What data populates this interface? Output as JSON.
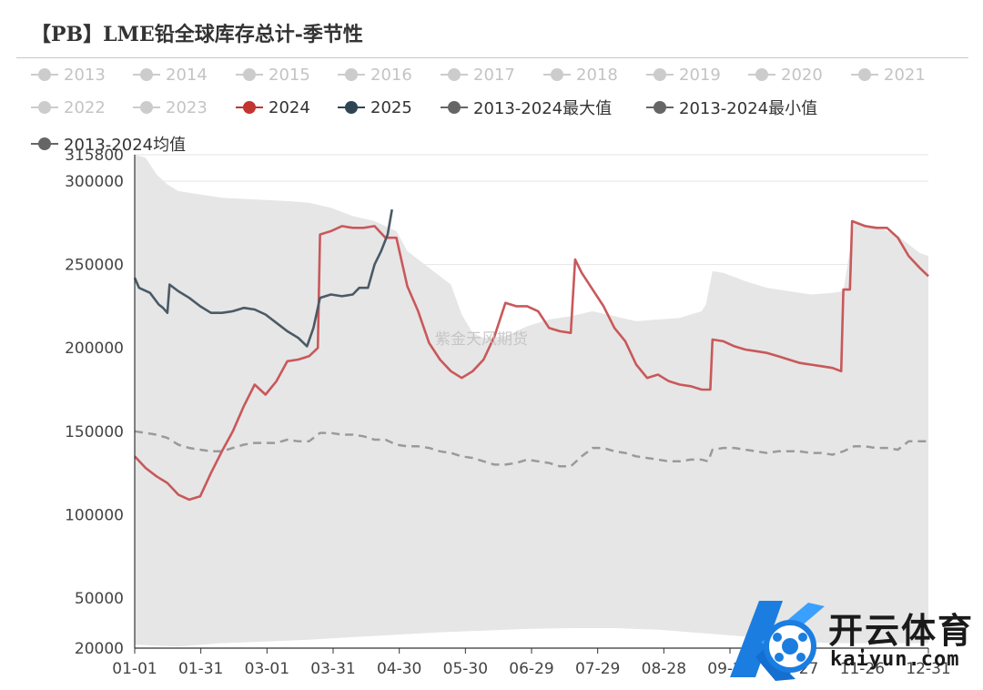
{
  "chart_data": {
    "type": "line",
    "title": "【PB】LME铅全球库存总计-季节性",
    "x_ticks": [
      "01-01",
      "01-31",
      "03-01",
      "03-31",
      "04-30",
      "05-30",
      "06-29",
      "07-29",
      "08-28",
      "09-27",
      "10-27",
      "11-26",
      "12-31"
    ],
    "y_ticks": [
      20000,
      50000,
      100000,
      150000,
      200000,
      250000,
      300000,
      315800
    ],
    "ylim": [
      20000,
      315800
    ],
    "xlim_day_of_year": [
      1,
      365
    ],
    "grid": "horizontal",
    "legend_position": "top",
    "legend": [
      {
        "name": "2013",
        "color": "#cccccc",
        "inactive": true
      },
      {
        "name": "2014",
        "color": "#cccccc",
        "inactive": true
      },
      {
        "name": "2015",
        "color": "#cccccc",
        "inactive": true
      },
      {
        "name": "2016",
        "color": "#cccccc",
        "inactive": true
      },
      {
        "name": "2017",
        "color": "#cccccc",
        "inactive": true
      },
      {
        "name": "2018",
        "color": "#cccccc",
        "inactive": true
      },
      {
        "name": "2019",
        "color": "#cccccc",
        "inactive": true
      },
      {
        "name": "2020",
        "color": "#cccccc",
        "inactive": true
      },
      {
        "name": "2021",
        "color": "#cccccc",
        "inactive": true
      },
      {
        "name": "2022",
        "color": "#cccccc",
        "inactive": true
      },
      {
        "name": "2023",
        "color": "#cccccc",
        "inactive": true
      },
      {
        "name": "2024",
        "color": "#c23531",
        "inactive": false
      },
      {
        "name": "2025",
        "color": "#2f4554",
        "inactive": false
      },
      {
        "name": "2013-2024最大值",
        "color": "#666666",
        "inactive": false
      },
      {
        "name": "2013-2024最小值",
        "color": "#666666",
        "inactive": false
      },
      {
        "name": "2013-2024均值",
        "color": "#666666",
        "inactive": false
      }
    ],
    "series": [
      {
        "name": "2024",
        "color": "#c9585a",
        "points": [
          [
            1,
            135000
          ],
          [
            6,
            128000
          ],
          [
            11,
            123000
          ],
          [
            16,
            119000
          ],
          [
            21,
            112000
          ],
          [
            26,
            109000
          ],
          [
            31,
            111000
          ],
          [
            36,
            125000
          ],
          [
            41,
            138000
          ],
          [
            46,
            150000
          ],
          [
            51,
            165000
          ],
          [
            56,
            178000
          ],
          [
            61,
            172000
          ],
          [
            66,
            180000
          ],
          [
            71,
            192000
          ],
          [
            76,
            193000
          ],
          [
            81,
            195000
          ],
          [
            85,
            200000
          ],
          [
            86,
            268000
          ],
          [
            91,
            270000
          ],
          [
            96,
            273000
          ],
          [
            101,
            272000
          ],
          [
            106,
            272000
          ],
          [
            111,
            273000
          ],
          [
            116,
            266000
          ],
          [
            121,
            266000
          ],
          [
            126,
            237000
          ],
          [
            131,
            222000
          ],
          [
            136,
            203000
          ],
          [
            141,
            193000
          ],
          [
            146,
            186000
          ],
          [
            151,
            182000
          ],
          [
            156,
            186000
          ],
          [
            161,
            193000
          ],
          [
            166,
            207000
          ],
          [
            171,
            227000
          ],
          [
            176,
            225000
          ],
          [
            181,
            225000
          ],
          [
            186,
            222000
          ],
          [
            191,
            212000
          ],
          [
            196,
            210000
          ],
          [
            201,
            209000
          ],
          [
            203,
            253000
          ],
          [
            206,
            245000
          ],
          [
            211,
            235000
          ],
          [
            216,
            225000
          ],
          [
            221,
            212000
          ],
          [
            226,
            204000
          ],
          [
            231,
            190000
          ],
          [
            236,
            182000
          ],
          [
            241,
            184000
          ],
          [
            246,
            180000
          ],
          [
            251,
            178000
          ],
          [
            256,
            177000
          ],
          [
            261,
            175000
          ],
          [
            265,
            175000
          ],
          [
            266,
            205000
          ],
          [
            271,
            204000
          ],
          [
            276,
            201000
          ],
          [
            281,
            199000
          ],
          [
            286,
            198000
          ],
          [
            291,
            197000
          ],
          [
            296,
            195000
          ],
          [
            301,
            193000
          ],
          [
            306,
            191000
          ],
          [
            311,
            190000
          ],
          [
            316,
            189000
          ],
          [
            321,
            188000
          ],
          [
            325,
            186000
          ],
          [
            326,
            235000
          ],
          [
            329,
            235000
          ],
          [
            330,
            276000
          ],
          [
            336,
            273000
          ],
          [
            341,
            272000
          ],
          [
            346,
            272000
          ],
          [
            351,
            266000
          ],
          [
            356,
            255000
          ],
          [
            361,
            248000
          ],
          [
            365,
            243000
          ]
        ]
      },
      {
        "name": "2025",
        "color": "#4a5a66",
        "points": [
          [
            1,
            242000
          ],
          [
            3,
            236000
          ],
          [
            8,
            233000
          ],
          [
            12,
            226000
          ],
          [
            14,
            224000
          ],
          [
            16,
            221000
          ],
          [
            17,
            238000
          ],
          [
            21,
            234000
          ],
          [
            26,
            230000
          ],
          [
            31,
            225000
          ],
          [
            36,
            221000
          ],
          [
            41,
            221000
          ],
          [
            46,
            222000
          ],
          [
            51,
            224000
          ],
          [
            56,
            223000
          ],
          [
            61,
            220000
          ],
          [
            66,
            215000
          ],
          [
            71,
            210000
          ],
          [
            76,
            206000
          ],
          [
            80,
            201000
          ],
          [
            83,
            212000
          ],
          [
            86,
            230000
          ],
          [
            91,
            232000
          ],
          [
            96,
            231000
          ],
          [
            101,
            232000
          ],
          [
            104,
            236000
          ],
          [
            108,
            236000
          ],
          [
            111,
            250000
          ],
          [
            114,
            258000
          ],
          [
            117,
            268000
          ],
          [
            119,
            283000
          ]
        ]
      },
      {
        "name": "2013-2024最大值",
        "color": "#e6e6e6",
        "points": [
          [
            1,
            315800
          ],
          [
            6,
            314000
          ],
          [
            11,
            304000
          ],
          [
            16,
            298000
          ],
          [
            21,
            294000
          ],
          [
            26,
            293000
          ],
          [
            31,
            292000
          ],
          [
            41,
            290000
          ],
          [
            56,
            289000
          ],
          [
            71,
            288000
          ],
          [
            81,
            287000
          ],
          [
            91,
            284000
          ],
          [
            101,
            279000
          ],
          [
            111,
            276000
          ],
          [
            121,
            270000
          ],
          [
            126,
            258000
          ],
          [
            136,
            248000
          ],
          [
            146,
            238000
          ],
          [
            151,
            220000
          ],
          [
            156,
            209000
          ],
          [
            161,
            206000
          ],
          [
            171,
            207000
          ],
          [
            181,
            213000
          ],
          [
            191,
            217000
          ],
          [
            201,
            219000
          ],
          [
            211,
            222000
          ],
          [
            221,
            219000
          ],
          [
            231,
            216000
          ],
          [
            241,
            217000
          ],
          [
            251,
            218000
          ],
          [
            256,
            220000
          ],
          [
            261,
            222000
          ],
          [
            263,
            226000
          ],
          [
            266,
            246000
          ],
          [
            271,
            245000
          ],
          [
            281,
            240000
          ],
          [
            291,
            236000
          ],
          [
            301,
            234000
          ],
          [
            311,
            232000
          ],
          [
            321,
            233000
          ],
          [
            326,
            234000
          ],
          [
            331,
            275000
          ],
          [
            341,
            273000
          ],
          [
            351,
            267000
          ],
          [
            361,
            257000
          ],
          [
            365,
            255000
          ]
        ]
      },
      {
        "name": "2013-2024最小值",
        "color": "#e6e6e6",
        "points": [
          [
            1,
            22000
          ],
          [
            21,
            21000
          ],
          [
            41,
            23000
          ],
          [
            61,
            24000
          ],
          [
            81,
            25000
          ],
          [
            106,
            27000
          ],
          [
            121,
            28000
          ],
          [
            141,
            29500
          ],
          [
            161,
            30500
          ],
          [
            181,
            31500
          ],
          [
            201,
            32000
          ],
          [
            221,
            32000
          ],
          [
            241,
            31000
          ],
          [
            261,
            29000
          ],
          [
            281,
            27000
          ],
          [
            301,
            24000
          ],
          [
            321,
            23000
          ],
          [
            341,
            23000
          ],
          [
            365,
            23000
          ]
        ]
      },
      {
        "name": "2013-2024均值",
        "color": "#9a9a9a",
        "dashed": true,
        "points": [
          [
            1,
            150000
          ],
          [
            6,
            149000
          ],
          [
            11,
            148000
          ],
          [
            16,
            146000
          ],
          [
            21,
            142000
          ],
          [
            26,
            140000
          ],
          [
            31,
            139000
          ],
          [
            36,
            138000
          ],
          [
            41,
            138000
          ],
          [
            46,
            140000
          ],
          [
            51,
            142000
          ],
          [
            56,
            143000
          ],
          [
            61,
            143000
          ],
          [
            66,
            143000
          ],
          [
            71,
            145000
          ],
          [
            76,
            144000
          ],
          [
            81,
            144000
          ],
          [
            86,
            149000
          ],
          [
            91,
            149000
          ],
          [
            96,
            148000
          ],
          [
            101,
            148000
          ],
          [
            106,
            147000
          ],
          [
            111,
            145000
          ],
          [
            116,
            145000
          ],
          [
            121,
            142000
          ],
          [
            126,
            141000
          ],
          [
            131,
            141000
          ],
          [
            136,
            140000
          ],
          [
            141,
            138000
          ],
          [
            146,
            137000
          ],
          [
            151,
            135000
          ],
          [
            156,
            134000
          ],
          [
            161,
            132000
          ],
          [
            166,
            130000
          ],
          [
            171,
            130000
          ],
          [
            176,
            131000
          ],
          [
            181,
            133000
          ],
          [
            186,
            132000
          ],
          [
            191,
            131000
          ],
          [
            196,
            129000
          ],
          [
            201,
            129000
          ],
          [
            206,
            135000
          ],
          [
            211,
            140000
          ],
          [
            216,
            140000
          ],
          [
            221,
            138000
          ],
          [
            226,
            137000
          ],
          [
            231,
            135000
          ],
          [
            236,
            134000
          ],
          [
            241,
            133000
          ],
          [
            246,
            132000
          ],
          [
            251,
            132000
          ],
          [
            256,
            133000
          ],
          [
            261,
            133000
          ],
          [
            264,
            132000
          ],
          [
            266,
            139000
          ],
          [
            271,
            140000
          ],
          [
            276,
            140000
          ],
          [
            281,
            139000
          ],
          [
            286,
            138000
          ],
          [
            291,
            137000
          ],
          [
            296,
            138000
          ],
          [
            301,
            138000
          ],
          [
            306,
            138000
          ],
          [
            311,
            137000
          ],
          [
            316,
            137000
          ],
          [
            321,
            136000
          ],
          [
            326,
            138000
          ],
          [
            331,
            141000
          ],
          [
            336,
            141000
          ],
          [
            341,
            140000
          ],
          [
            346,
            140000
          ],
          [
            351,
            139000
          ],
          [
            356,
            144000
          ],
          [
            361,
            144000
          ],
          [
            365,
            144000
          ]
        ]
      }
    ]
  },
  "watermark": "紫金天风期货",
  "logo": {
    "name": "开云体育",
    "url": "kaiyun.com"
  }
}
